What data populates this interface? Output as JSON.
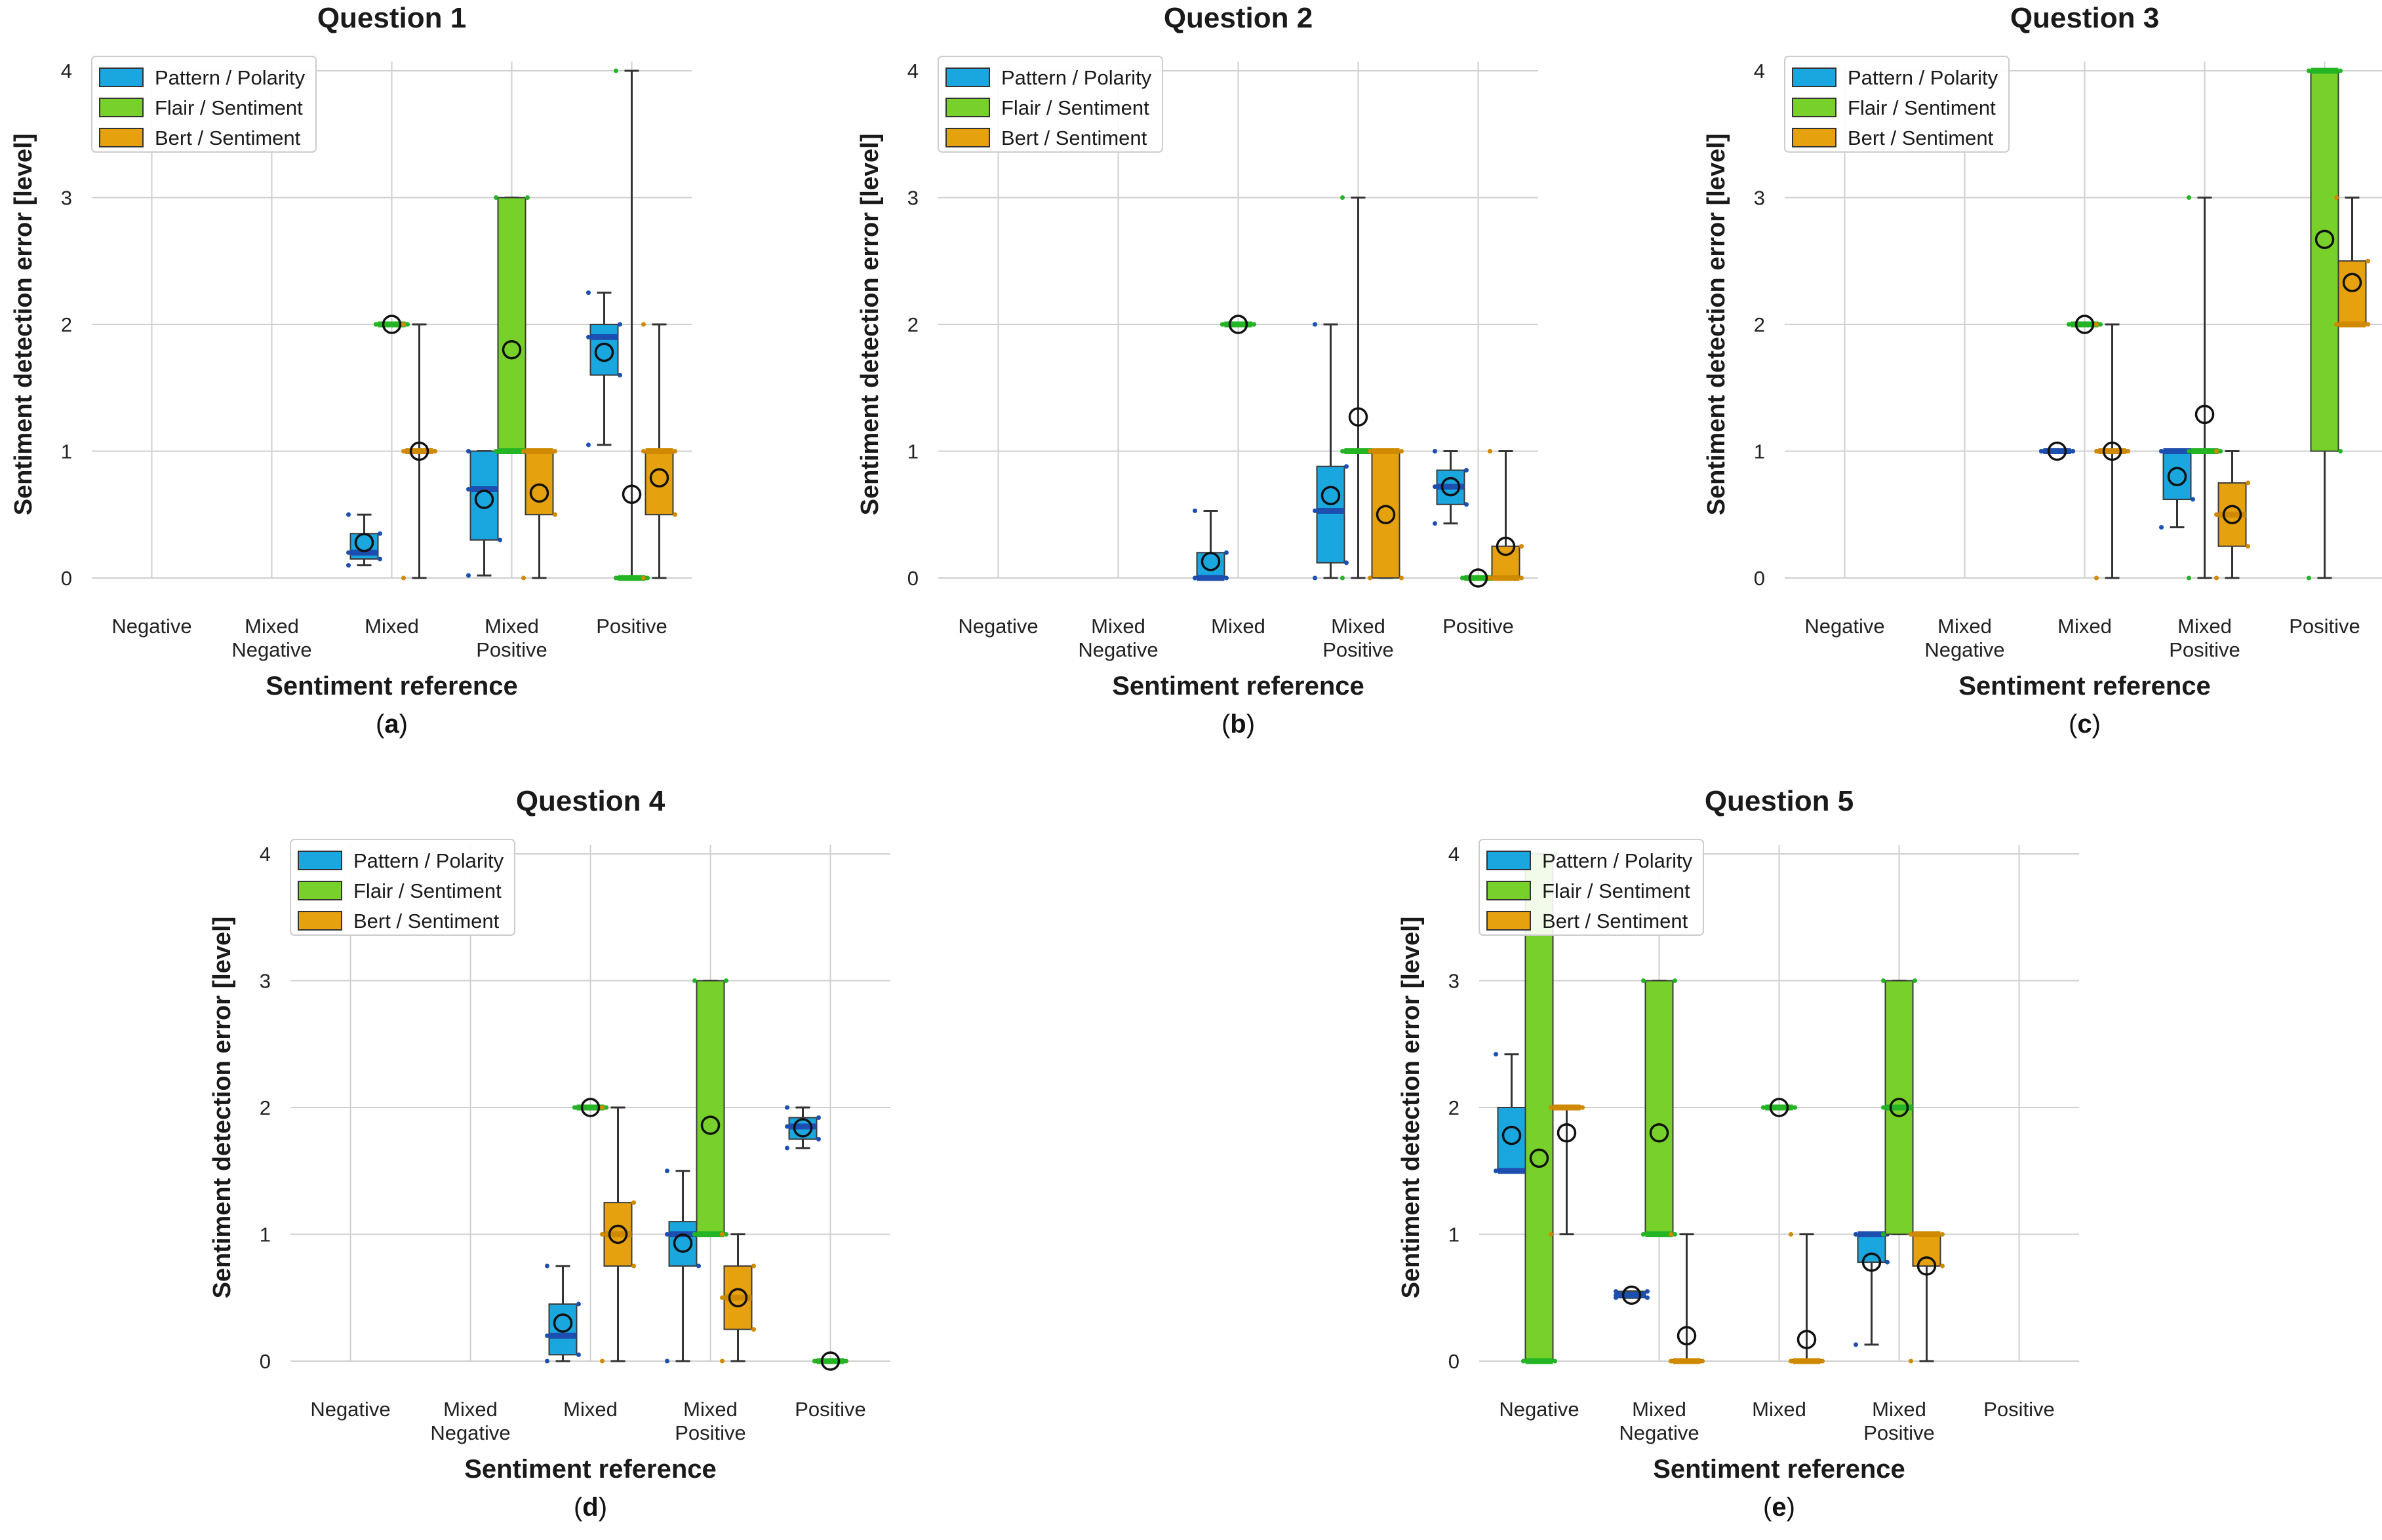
{
  "figure": {
    "colors": {
      "pattern_fill": "#1aa6df",
      "pattern_median": "#1c4fb0",
      "flair_fill": "#77d12a",
      "flair_median": "#24b524",
      "bert_fill": "#e6a10f",
      "bert_median": "#d08a00",
      "grid": "#cfcfcf",
      "whisker": "#333333"
    }
  },
  "chart_data": [
    {
      "type": "box",
      "panel": "a",
      "title": "Question 1",
      "xlabel": "Sentiment reference",
      "ylabel": "Sentiment detection error [level]",
      "ylim": [
        0,
        4
      ],
      "yticks": [
        "0",
        "1",
        "2",
        "3",
        "4"
      ],
      "categories": [
        "Negative",
        "Mixed\nNegative",
        "Mixed",
        "Mixed\nPositive",
        "Positive"
      ],
      "legend": [
        "Pattern / Polarity",
        "Flair / Sentiment",
        "Bert / Sentiment"
      ],
      "legend_position": "top-left",
      "series": [
        {
          "name": "Pattern / Polarity",
          "boxes": [
            null,
            null,
            {
              "q1": 0.15,
              "median": 0.2,
              "q3": 0.35,
              "wlo": 0.1,
              "whi": 0.5,
              "mean": 0.28
            },
            {
              "q1": 0.3,
              "median": 0.7,
              "q3": 1.0,
              "wlo": 0.02,
              "whi": 1.0,
              "mean": 0.62
            },
            {
              "q1": 1.6,
              "median": 1.9,
              "q3": 2.0,
              "wlo": 1.05,
              "whi": 2.25,
              "mean": 1.78
            }
          ]
        },
        {
          "name": "Flair / Sentiment",
          "boxes": [
            null,
            null,
            {
              "q1": 2.0,
              "median": 2.0,
              "q3": 2.0,
              "wlo": 2.0,
              "whi": 2.0,
              "mean": 2.0
            },
            {
              "q1": 1.0,
              "median": 1.0,
              "q3": 3.0,
              "wlo": 1.0,
              "whi": 3.0,
              "mean": 1.8
            },
            {
              "q1": 0.0,
              "median": 0.0,
              "q3": 0.0,
              "wlo": 0.0,
              "whi": 4.0,
              "mean": 0.66
            }
          ]
        },
        {
          "name": "Bert / Sentiment",
          "boxes": [
            null,
            null,
            {
              "q1": 1.0,
              "median": 1.0,
              "q3": 1.0,
              "wlo": 0.0,
              "whi": 2.0,
              "mean": 1.0
            },
            {
              "q1": 0.5,
              "median": 1.0,
              "q3": 1.0,
              "wlo": 0.0,
              "whi": 1.0,
              "mean": 0.67
            },
            {
              "q1": 0.5,
              "median": 1.0,
              "q3": 1.0,
              "wlo": 0.0,
              "whi": 2.0,
              "mean": 0.79
            }
          ]
        }
      ]
    },
    {
      "type": "box",
      "panel": "b",
      "title": "Question 2",
      "xlabel": "Sentiment reference",
      "ylabel": "Sentiment detection error [level]",
      "ylim": [
        0,
        4
      ],
      "yticks": [
        "0",
        "1",
        "2",
        "3",
        "4"
      ],
      "categories": [
        "Negative",
        "Mixed\nNegative",
        "Mixed",
        "Mixed\nPositive",
        "Positive"
      ],
      "legend": [
        "Pattern / Polarity",
        "Flair / Sentiment",
        "Bert / Sentiment"
      ],
      "legend_position": "top-left",
      "series": [
        {
          "name": "Pattern / Polarity",
          "boxes": [
            null,
            null,
            {
              "q1": 0.0,
              "median": 0.0,
              "q3": 0.2,
              "wlo": 0.0,
              "whi": 0.53,
              "mean": 0.13
            },
            {
              "q1": 0.12,
              "median": 0.53,
              "q3": 0.88,
              "wlo": 0.0,
              "whi": 2.0,
              "mean": 0.65
            },
            {
              "q1": 0.58,
              "median": 0.72,
              "q3": 0.85,
              "wlo": 0.43,
              "whi": 1.0,
              "mean": 0.72
            }
          ]
        },
        {
          "name": "Flair / Sentiment",
          "boxes": [
            null,
            null,
            {
              "q1": 2.0,
              "median": 2.0,
              "q3": 2.0,
              "wlo": 2.0,
              "whi": 2.0,
              "mean": 2.0
            },
            {
              "q1": 1.0,
              "median": 1.0,
              "q3": 1.0,
              "wlo": 0.0,
              "whi": 3.0,
              "mean": 1.27
            },
            {
              "q1": 0.0,
              "median": 0.0,
              "q3": 0.0,
              "wlo": 0.0,
              "whi": 0.0,
              "mean": 0.0
            }
          ]
        },
        {
          "name": "Bert / Sentiment",
          "boxes": [
            null,
            null,
            null,
            {
              "q1": 0.0,
              "median": 1.0,
              "q3": 1.0,
              "wlo": 0.0,
              "whi": 1.0,
              "mean": 0.5
            },
            {
              "q1": 0.0,
              "median": 0.0,
              "q3": 0.25,
              "wlo": 0.0,
              "whi": 1.0,
              "mean": 0.25
            }
          ]
        }
      ]
    },
    {
      "type": "box",
      "panel": "c",
      "title": "Question 3",
      "xlabel": "Sentiment reference",
      "ylabel": "Sentiment detection error [level]",
      "ylim": [
        0,
        4
      ],
      "yticks": [
        "0",
        "1",
        "2",
        "3",
        "4"
      ],
      "categories": [
        "Negative",
        "Mixed\nNegative",
        "Mixed",
        "Mixed\nPositive",
        "Positive"
      ],
      "legend": [
        "Pattern / Polarity",
        "Flair / Sentiment",
        "Bert / Sentiment"
      ],
      "legend_position": "top-left",
      "series": [
        {
          "name": "Pattern / Polarity",
          "boxes": [
            null,
            null,
            {
              "q1": 1.0,
              "median": 1.0,
              "q3": 1.0,
              "wlo": 1.0,
              "whi": 1.0,
              "mean": 1.0
            },
            {
              "q1": 0.62,
              "median": 1.0,
              "q3": 1.0,
              "wlo": 0.4,
              "whi": 1.0,
              "mean": 0.8
            },
            null
          ]
        },
        {
          "name": "Flair / Sentiment",
          "boxes": [
            null,
            null,
            {
              "q1": 2.0,
              "median": 2.0,
              "q3": 2.0,
              "wlo": 2.0,
              "whi": 2.0,
              "mean": 2.0
            },
            {
              "q1": 1.0,
              "median": 1.0,
              "q3": 1.0,
              "wlo": 0.0,
              "whi": 3.0,
              "mean": 1.29
            },
            {
              "q1": 1.0,
              "median": 4.0,
              "q3": 4.0,
              "wlo": 0.0,
              "whi": 4.0,
              "mean": 2.67
            }
          ]
        },
        {
          "name": "Bert / Sentiment",
          "boxes": [
            null,
            null,
            {
              "q1": 1.0,
              "median": 1.0,
              "q3": 1.0,
              "wlo": 0.0,
              "whi": 2.0,
              "mean": 1.0
            },
            {
              "q1": 0.25,
              "median": 0.5,
              "q3": 0.75,
              "wlo": 0.0,
              "whi": 1.0,
              "mean": 0.5
            },
            {
              "q1": 2.0,
              "median": 2.0,
              "q3": 2.5,
              "wlo": 2.0,
              "whi": 3.0,
              "mean": 2.33
            }
          ]
        }
      ]
    },
    {
      "type": "box",
      "panel": "d",
      "title": "Question 4",
      "xlabel": "Sentiment reference",
      "ylabel": "Sentiment detection error [level]",
      "ylim": [
        0,
        4
      ],
      "yticks": [
        "0",
        "1",
        "2",
        "3",
        "4"
      ],
      "categories": [
        "Negative",
        "Mixed\nNegative",
        "Mixed",
        "Mixed\nPositive",
        "Positive"
      ],
      "legend": [
        "Pattern / Polarity",
        "Flair / Sentiment",
        "Bert / Sentiment"
      ],
      "legend_position": "top-left",
      "series": [
        {
          "name": "Pattern / Polarity",
          "boxes": [
            null,
            null,
            {
              "q1": 0.05,
              "median": 0.2,
              "q3": 0.45,
              "wlo": 0.0,
              "whi": 0.75,
              "mean": 0.3
            },
            {
              "q1": 0.75,
              "median": 1.0,
              "q3": 1.1,
              "wlo": 0.0,
              "whi": 1.5,
              "mean": 0.93
            },
            {
              "q1": 1.75,
              "median": 1.85,
              "q3": 1.92,
              "wlo": 1.68,
              "whi": 2.0,
              "mean": 1.84
            }
          ]
        },
        {
          "name": "Flair / Sentiment",
          "boxes": [
            null,
            null,
            {
              "q1": 2.0,
              "median": 2.0,
              "q3": 2.0,
              "wlo": 2.0,
              "whi": 2.0,
              "mean": 2.0
            },
            {
              "q1": 1.0,
              "median": 1.0,
              "q3": 3.0,
              "wlo": 1.0,
              "whi": 3.0,
              "mean": 1.86
            },
            {
              "q1": 0.0,
              "median": 0.0,
              "q3": 0.0,
              "wlo": 0.0,
              "whi": 0.0,
              "mean": 0.0
            }
          ]
        },
        {
          "name": "Bert / Sentiment",
          "boxes": [
            null,
            null,
            {
              "q1": 0.75,
              "median": 1.0,
              "q3": 1.25,
              "wlo": 0.0,
              "whi": 2.0,
              "mean": 1.0
            },
            {
              "q1": 0.25,
              "median": 0.5,
              "q3": 0.75,
              "wlo": 0.0,
              "whi": 1.0,
              "mean": 0.5
            },
            null
          ]
        }
      ]
    },
    {
      "type": "box",
      "panel": "e",
      "title": "Question 5",
      "xlabel": "Sentiment reference",
      "ylabel": "Sentiment detection error [level]",
      "ylim": [
        0,
        4
      ],
      "yticks": [
        "0",
        "1",
        "2",
        "3",
        "4"
      ],
      "categories": [
        "Negative",
        "Mixed\nNegative",
        "Mixed",
        "Mixed\nPositive",
        "Positive"
      ],
      "legend": [
        "Pattern / Polarity",
        "Flair / Sentiment",
        "Bert / Sentiment"
      ],
      "legend_position": "top-left",
      "series": [
        {
          "name": "Pattern / Polarity",
          "boxes": [
            {
              "q1": 1.5,
              "median": 1.5,
              "q3": 2.0,
              "wlo": 1.5,
              "whi": 2.42,
              "mean": 1.78
            },
            {
              "q1": 0.5,
              "median": 0.52,
              "q3": 0.55,
              "wlo": 0.5,
              "whi": 0.55,
              "mean": 0.52
            },
            null,
            {
              "q1": 0.78,
              "median": 1.0,
              "q3": 1.0,
              "wlo": 0.13,
              "whi": 1.0,
              "mean": 0.78
            },
            null
          ]
        },
        {
          "name": "Flair / Sentiment",
          "boxes": [
            {
              "q1": 0.0,
              "median": 0.0,
              "q3": 4.0,
              "wlo": 0.0,
              "whi": 4.0,
              "mean": 1.6
            },
            {
              "q1": 1.0,
              "median": 1.0,
              "q3": 3.0,
              "wlo": 1.0,
              "whi": 3.0,
              "mean": 1.8
            },
            {
              "q1": 2.0,
              "median": 2.0,
              "q3": 2.0,
              "wlo": 2.0,
              "whi": 2.0,
              "mean": 2.0
            },
            {
              "q1": 1.0,
              "median": 2.0,
              "q3": 3.0,
              "wlo": 1.0,
              "whi": 3.0,
              "mean": 2.0
            },
            null
          ]
        },
        {
          "name": "Bert / Sentiment",
          "boxes": [
            {
              "q1": 2.0,
              "median": 2.0,
              "q3": 2.0,
              "wlo": 1.0,
              "whi": 2.0,
              "mean": 1.8
            },
            {
              "q1": 0.0,
              "median": 0.0,
              "q3": 0.0,
              "wlo": 0.0,
              "whi": 1.0,
              "mean": 0.2
            },
            {
              "q1": 0.0,
              "median": 0.0,
              "q3": 0.0,
              "wlo": 0.0,
              "whi": 1.0,
              "mean": 0.17
            },
            {
              "q1": 0.75,
              "median": 1.0,
              "q3": 1.0,
              "wlo": 0.0,
              "whi": 1.0,
              "mean": 0.75
            },
            null
          ]
        }
      ]
    }
  ]
}
